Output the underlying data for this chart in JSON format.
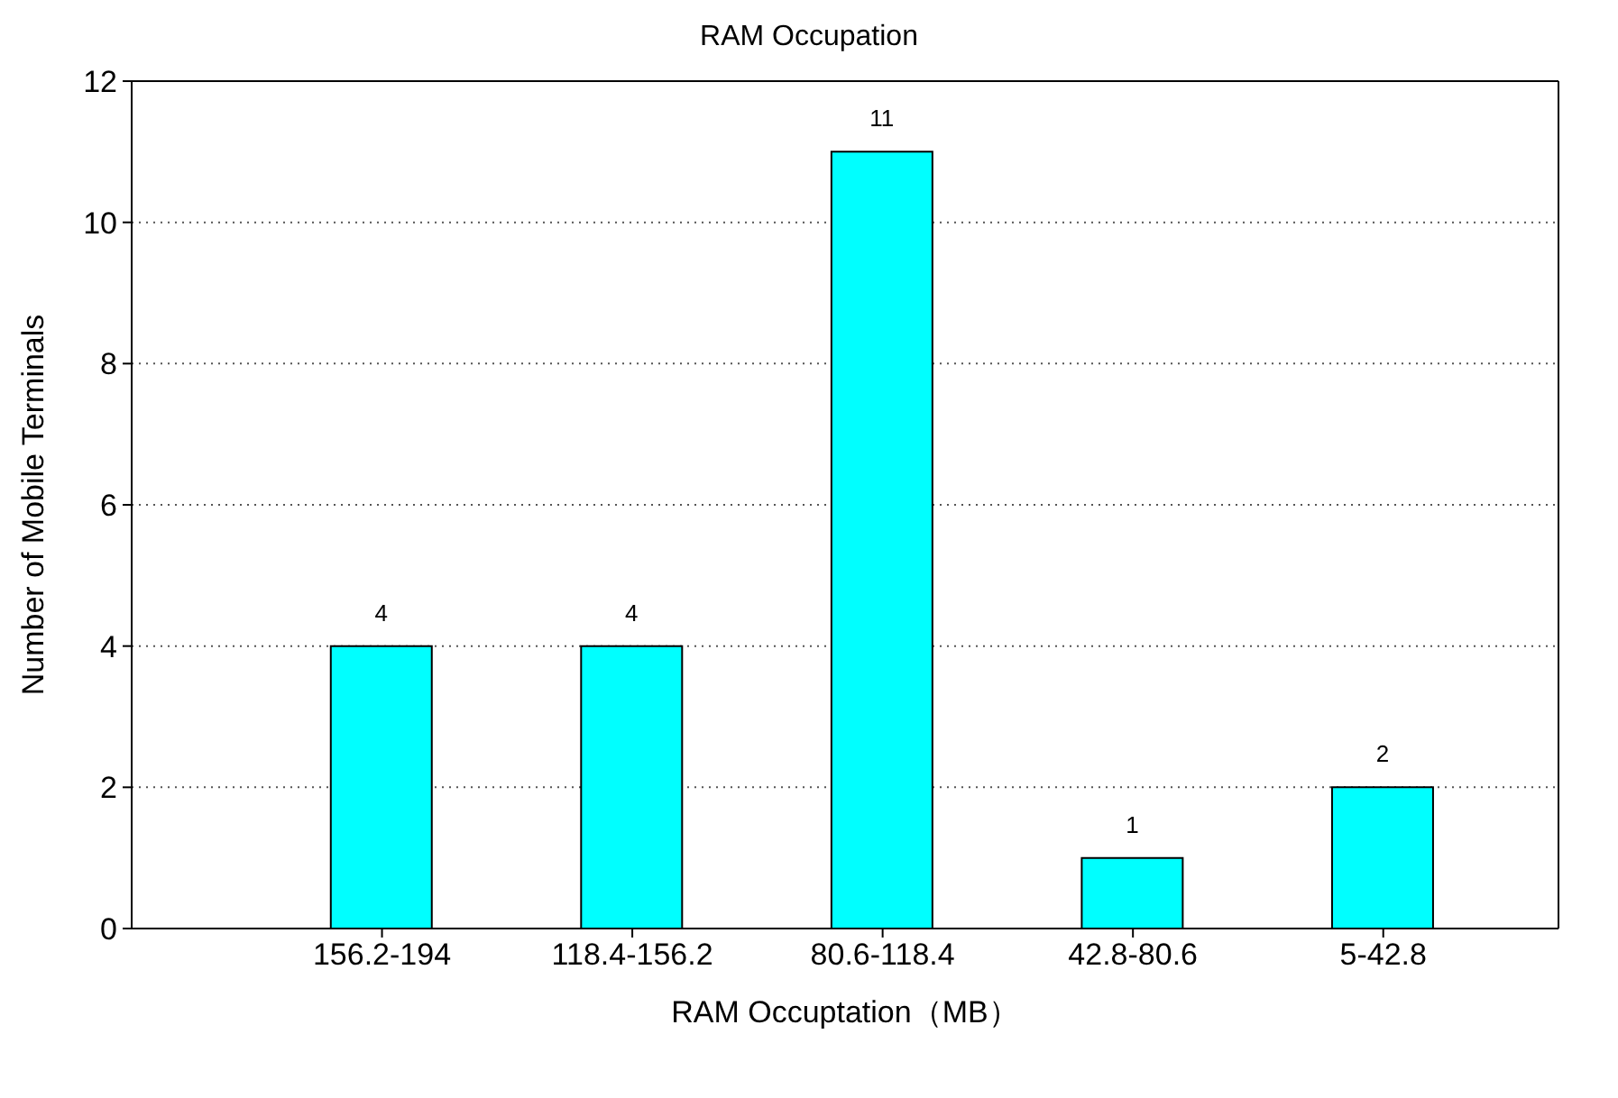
{
  "chart_data": {
    "type": "bar",
    "title": "RAM Occupation",
    "xlabel": "RAM Occuptation（MB）",
    "ylabel": "Number of Mobile Terminals",
    "categories": [
      "156.2-194",
      "118.4-156.2",
      "80.6-118.4",
      "42.8-80.6",
      "5-42.8"
    ],
    "values": [
      4,
      4,
      11,
      1,
      2
    ],
    "color": "#00ffff",
    "ylim": [
      0,
      12
    ],
    "yticks": [
      0,
      2,
      4,
      6,
      8,
      10,
      12
    ],
    "grid": "y",
    "data_labels": true
  }
}
